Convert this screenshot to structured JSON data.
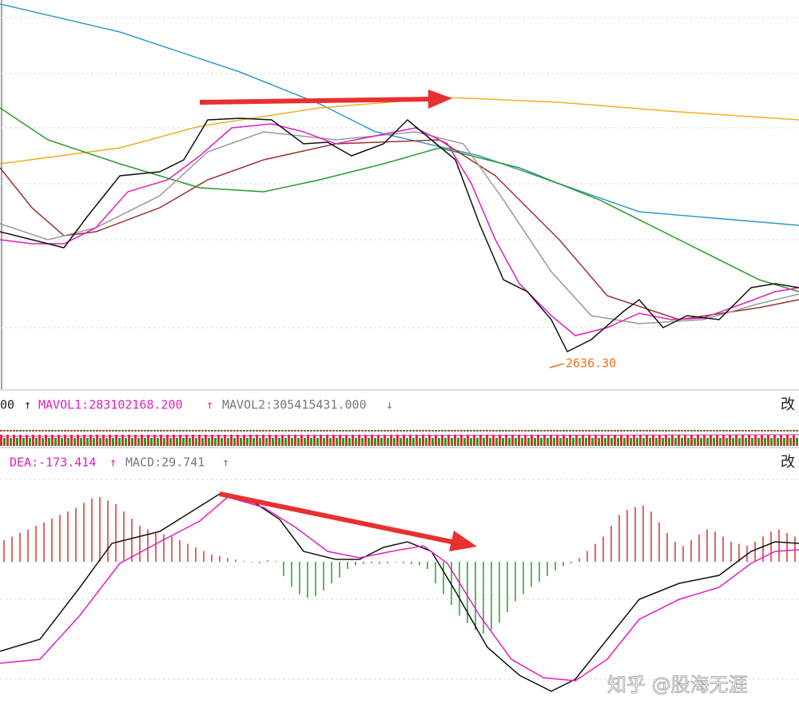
{
  "main": {
    "low_label": "2636.30"
  },
  "volume_bar": {
    "lead": "00",
    "arrow1": "↑",
    "mavol1": "MAVOL1:283102168.200",
    "arrow2": "↑",
    "mavol2": "MAVOL2:305415431.000",
    "arrow3": "↓",
    "button": "改"
  },
  "macd_bar": {
    "dea": "DEA:-173.414",
    "arrow1": "↑",
    "macd": "MACD:29.741",
    "arrow2": "↑",
    "button": "改"
  },
  "macd": {
    "up_color": "#e03030",
    "down_color": "#2a9a2a",
    "histogram": [
      30,
      35,
      40,
      45,
      50,
      55,
      60,
      65,
      70,
      75,
      82,
      88,
      90,
      85,
      80,
      70,
      60,
      50,
      45,
      40,
      38,
      35,
      30,
      25,
      20,
      15,
      10,
      8,
      5,
      3,
      1,
      -1,
      -2,
      2,
      1,
      -20,
      -35,
      -45,
      -50,
      -48,
      -40,
      -30,
      -22,
      -10,
      -5,
      -3,
      -2,
      -3,
      -2,
      -1,
      -2,
      -3,
      -5,
      -10,
      -30,
      -45,
      -60,
      -75,
      -85,
      -95,
      -100,
      -95,
      -85,
      -70,
      -55,
      -45,
      -35,
      -28,
      -20,
      -12,
      -6,
      -2,
      5,
      15,
      25,
      35,
      50,
      65,
      72,
      76,
      78,
      70,
      55,
      40,
      28,
      22,
      30,
      38,
      45,
      42,
      35,
      28,
      25,
      22,
      28,
      35,
      42,
      45,
      40,
      35
    ]
  },
  "watermark": "知乎 @股海无涯"
}
